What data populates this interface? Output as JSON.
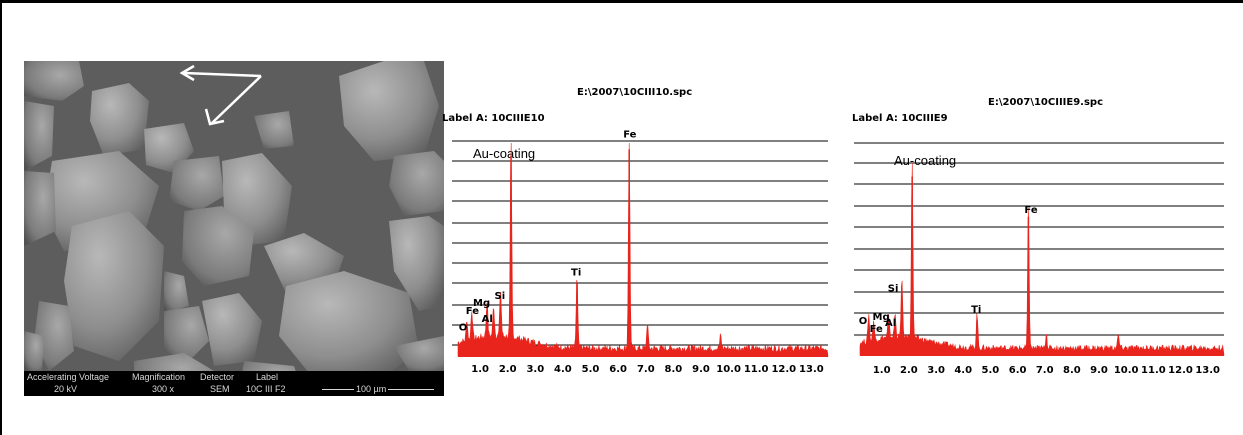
{
  "sem_image": {
    "arrows_icon": "white-arrows-icon",
    "databar": {
      "headers": [
        "Accelerating Voltage",
        "Magnification",
        "Detector",
        "Label"
      ],
      "values": [
        "20 kV",
        "300 x",
        "SEM",
        "10C III F2"
      ],
      "scale_bar": "100 µm"
    }
  },
  "chart_data": [
    {
      "type": "line",
      "title": "E:\\2007\\10CIII10.spc",
      "label": "Label A: 10CIIIE10",
      "annotation": "Au-coating",
      "x_ticks": [
        "1.0",
        "2.0",
        "3.0",
        "4.0",
        "5.0",
        "6.0",
        "7.0",
        "8.0",
        "9.0",
        "10.0",
        "11.0",
        "12.0",
        "13.0"
      ],
      "xlim": [
        0.2,
        13.6
      ],
      "ylim": [
        0,
        100
      ],
      "color": "#e8241c",
      "peaks": [
        {
          "element": "O",
          "x": 0.52,
          "y": 10
        },
        {
          "element": "Fe",
          "x": 0.7,
          "y": 14
        },
        {
          "element": "Mg",
          "x": 1.25,
          "y": 17
        },
        {
          "element": "Al",
          "x": 1.49,
          "y": 14
        },
        {
          "element": "Si",
          "x": 1.74,
          "y": 22
        },
        {
          "element": "",
          "x": 2.12,
          "y": 94
        },
        {
          "element": "Ti",
          "x": 4.51,
          "y": 34
        },
        {
          "element": "Fe",
          "x": 6.4,
          "y": 97
        },
        {
          "element": "",
          "x": 7.06,
          "y": 12
        },
        {
          "element": "",
          "x": 9.71,
          "y": 6
        }
      ]
    },
    {
      "type": "line",
      "title": "E:\\2007\\10CIIIE9.spc",
      "label": "Label A: 10CIIIE9",
      "annotation": "Au-coating",
      "x_ticks": [
        "1.0",
        "2.0",
        "3.0",
        "4.0",
        "5.0",
        "6.0",
        "7.0",
        "8.0",
        "9.0",
        "10.0",
        "11.0",
        "12.0",
        "13.0"
      ],
      "xlim": [
        0.2,
        13.6
      ],
      "ylim": [
        0,
        100
      ],
      "color": "#e8241c",
      "peaks": [
        {
          "element": "O",
          "x": 0.52,
          "y": 14
        },
        {
          "element": "Fe",
          "x": 0.7,
          "y": 10
        },
        {
          "element": "Mg",
          "x": 1.25,
          "y": 11
        },
        {
          "element": "Al",
          "x": 1.49,
          "y": 12
        },
        {
          "element": "Si",
          "x": 1.74,
          "y": 30
        },
        {
          "element": "",
          "x": 2.12,
          "y": 93
        },
        {
          "element": "Ti",
          "x": 4.51,
          "y": 18
        },
        {
          "element": "Fe",
          "x": 6.4,
          "y": 72
        },
        {
          "element": "",
          "x": 7.06,
          "y": 8
        },
        {
          "element": "",
          "x": 9.71,
          "y": 7
        }
      ]
    }
  ]
}
